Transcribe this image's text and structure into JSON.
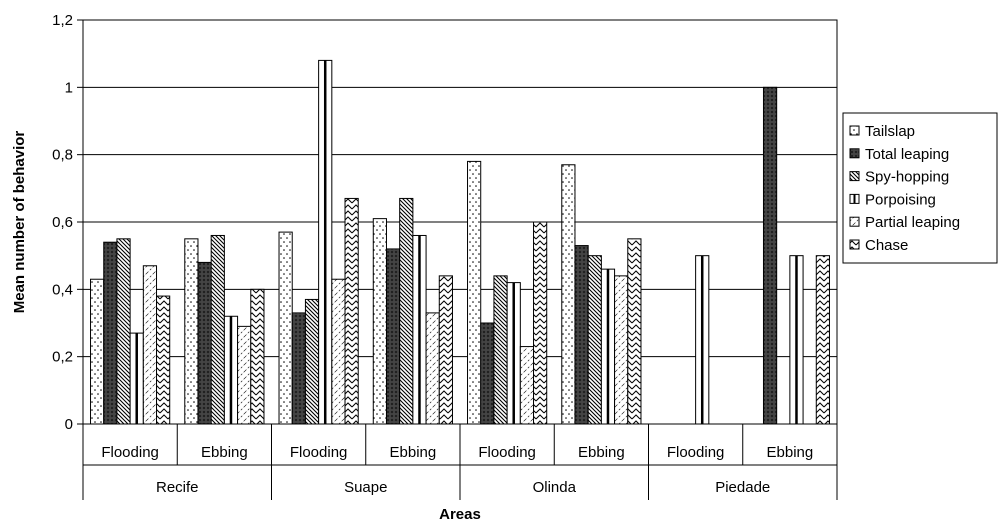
{
  "chart_data": {
    "type": "bar",
    "xlabel": "Areas",
    "ylabel": "Mean number of behavior",
    "ylim": [
      0,
      1.2
    ],
    "yticks": [
      "0",
      "0,2",
      "0,4",
      "0,6",
      "0,8",
      "1",
      "1,2"
    ],
    "grid": true,
    "legend_position": "right",
    "areas": [
      {
        "name": "Recife",
        "tides": [
          "Flooding",
          "Ebbing"
        ]
      },
      {
        "name": "Suape",
        "tides": [
          "Flooding",
          "Ebbing"
        ]
      },
      {
        "name": "Olinda",
        "tides": [
          "Flooding",
          "Ebbing"
        ]
      },
      {
        "name": "Piedade",
        "tides": [
          "Flooding",
          "Ebbing"
        ]
      }
    ],
    "series": [
      {
        "name": "Tailslap",
        "pattern": "dots",
        "values": [
          0.43,
          0.55,
          0.57,
          0.61,
          0.78,
          0.77,
          0,
          0
        ]
      },
      {
        "name": "Total leaping",
        "pattern": "dark-cross",
        "values": [
          0.54,
          0.48,
          0.33,
          0.52,
          0.3,
          0.53,
          0,
          1.0
        ]
      },
      {
        "name": "Spy-hopping",
        "pattern": "diag-dense",
        "values": [
          0.55,
          0.56,
          0.37,
          0.67,
          0.44,
          0.5,
          0,
          0
        ]
      },
      {
        "name": "Porpoising",
        "pattern": "vertical",
        "values": [
          0.27,
          0.32,
          1.08,
          0.56,
          0.42,
          0.46,
          0.5,
          0.5
        ]
      },
      {
        "name": "Partial leaping",
        "pattern": "diag-light",
        "values": [
          0.47,
          0.29,
          0.43,
          0.33,
          0.23,
          0.44,
          0,
          0
        ]
      },
      {
        "name": "Chase",
        "pattern": "zigzag",
        "values": [
          0.38,
          0.4,
          0.67,
          0.44,
          0.6,
          0.55,
          0,
          0.5
        ]
      }
    ]
  }
}
